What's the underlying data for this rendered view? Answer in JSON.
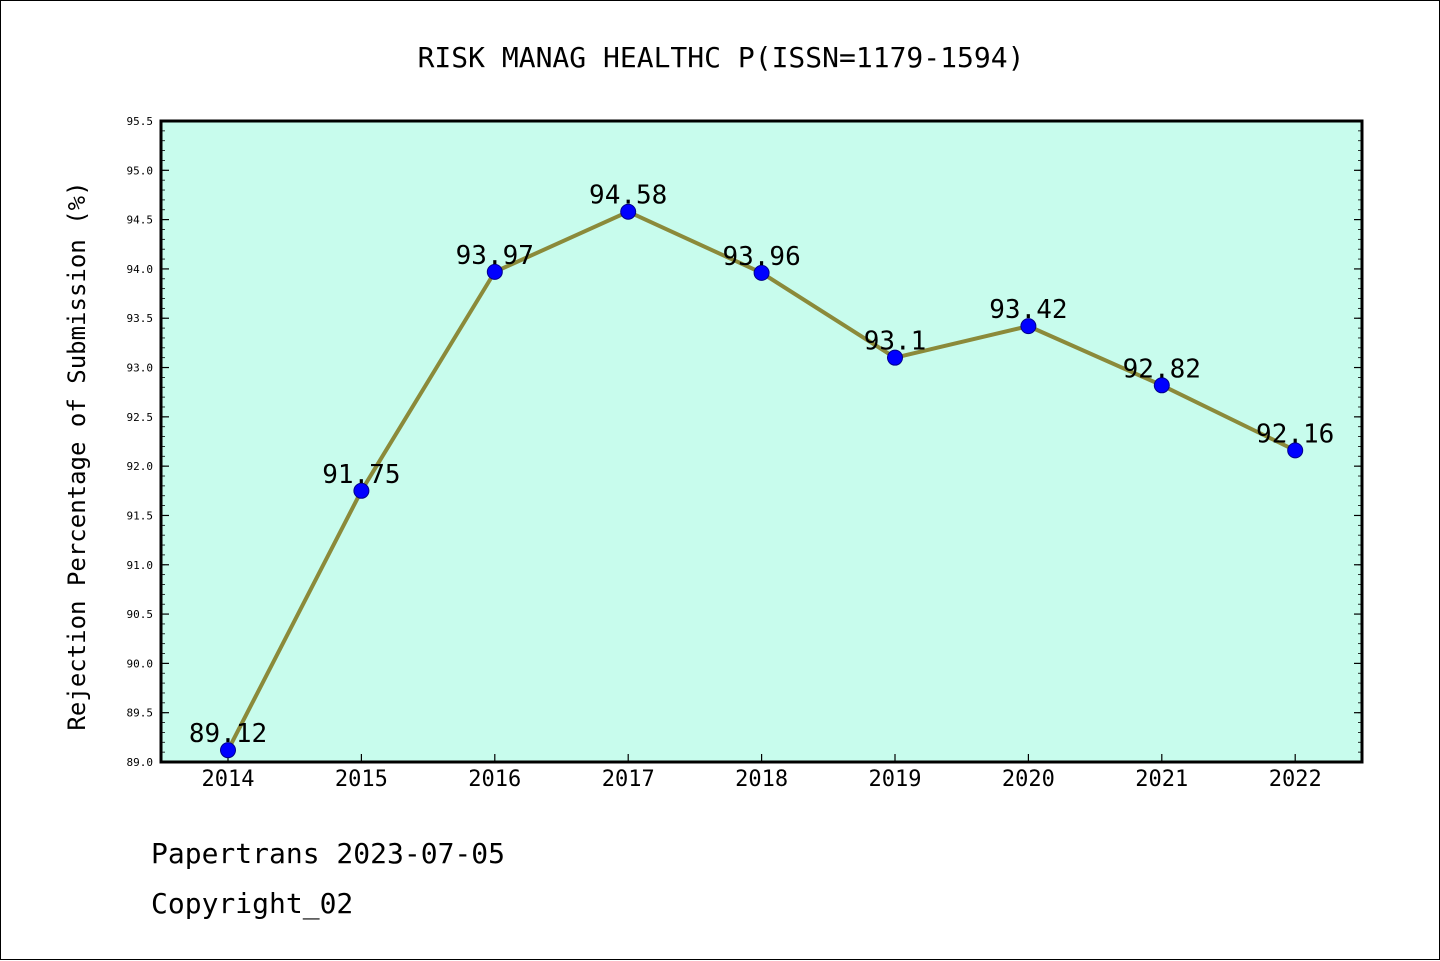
{
  "chart_data": {
    "type": "line",
    "title": "RISK MANAG HEALTHC P(ISSN=1179-1594)",
    "xlabel": "",
    "ylabel": "Rejection Percentage of Submission (%)",
    "categories": [
      "2014",
      "2015",
      "2016",
      "2017",
      "2018",
      "2019",
      "2020",
      "2021",
      "2022"
    ],
    "series": [
      {
        "values": [
          89.12,
          91.75,
          93.97,
          94.58,
          93.96,
          93.1,
          93.42,
          92.82,
          92.16
        ]
      }
    ],
    "data_labels": [
      "89.12",
      "91.75",
      "93.97",
      "94.58",
      "93.96",
      "93.1",
      "93.42",
      "92.82",
      "92.16"
    ],
    "ylim": [
      89.0,
      95.5
    ],
    "yticks": [
      "89.0",
      "89.5",
      "90.0",
      "90.5",
      "91.0",
      "91.5",
      "92.0",
      "92.5",
      "93.0",
      "93.5",
      "94.0",
      "94.5",
      "95.0",
      "95.5"
    ],
    "grid": false,
    "legend": "none",
    "colors": {
      "plot_background": "#c8fced",
      "line": "#8b8a3a",
      "marker": "#0000ff"
    }
  },
  "footer": {
    "line1": "Papertrans 2023-07-05",
    "line2": "Copyright_02"
  }
}
